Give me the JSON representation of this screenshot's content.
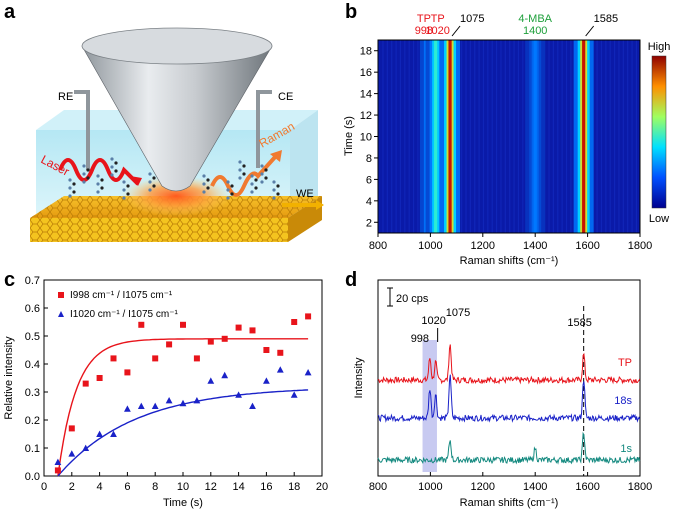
{
  "panels": {
    "a": {
      "letter": "a",
      "labels": {
        "re": "RE",
        "ce": "CE",
        "we": "WE",
        "laser": "Laser",
        "raman": "Raman"
      }
    },
    "b": {
      "letter": "b",
      "peak_labels": [
        {
          "text1": "TP",
          "text2": "998",
          "color": "#e8141b"
        },
        {
          "text1": "TP",
          "text2": "1020",
          "color": "#e8141b"
        },
        {
          "text1": "1075",
          "text2": "",
          "color": "#000000"
        },
        {
          "text1": "4-MBA",
          "text2": "1400",
          "color": "#1fa03c"
        },
        {
          "text1": "1585",
          "text2": "",
          "color": "#000000"
        }
      ],
      "colorbar": {
        "high": "High",
        "low": "Low"
      }
    },
    "c": {
      "letter": "c"
    },
    "d": {
      "letter": "d",
      "scale_bar": "20 cps",
      "peak_labels": [
        "998",
        "1020",
        "1075",
        "1585"
      ],
      "trace_labels": [
        {
          "text": "TP",
          "color": "#e8141b"
        },
        {
          "text": "18s",
          "color": "#1a22c8"
        },
        {
          "text": "1s",
          "color": "#158a80"
        }
      ]
    }
  },
  "chart_data": [
    {
      "type": "heatmap",
      "panel": "b",
      "xlabel": "Raman shifts (cm⁻¹)",
      "ylabel": "Time (s)",
      "xlim": [
        800,
        1800
      ],
      "ylim": [
        1,
        19
      ],
      "x_ticks": [
        800,
        1000,
        1200,
        1400,
        1600,
        1800
      ],
      "y_ticks": [
        2,
        4,
        6,
        8,
        10,
        12,
        14,
        16,
        18
      ],
      "bands": [
        {
          "center": 998,
          "intensity": 0.55
        },
        {
          "center": 1020,
          "intensity": 0.6
        },
        {
          "center": 1075,
          "intensity": 1.0
        },
        {
          "center": 1400,
          "intensity": 0.3
        },
        {
          "center": 1585,
          "intensity": 1.0
        }
      ]
    },
    {
      "type": "scatter",
      "panel": "c",
      "xlabel": "Time (s)",
      "ylabel": "Relative intensity",
      "xlim": [
        0,
        20
      ],
      "ylim": [
        0,
        0.7
      ],
      "x_ticks": [
        0,
        2,
        4,
        6,
        8,
        10,
        12,
        14,
        16,
        18,
        20
      ],
      "y_ticks": [
        0.0,
        0.1,
        0.2,
        0.3,
        0.4,
        0.5,
        0.6,
        0.7
      ],
      "series": [
        {
          "name": "I998 cm⁻¹ / I1075 cm⁻¹",
          "color": "#e8141b",
          "marker": "square",
          "x": [
            1,
            2,
            3,
            4,
            5,
            6,
            7,
            8,
            9,
            10,
            11,
            12,
            13,
            14,
            15,
            16,
            17,
            18,
            19
          ],
          "y": [
            0.02,
            0.17,
            0.33,
            0.35,
            0.42,
            0.37,
            0.54,
            0.42,
            0.47,
            0.54,
            0.42,
            0.48,
            0.49,
            0.53,
            0.52,
            0.45,
            0.44,
            0.55,
            0.57
          ],
          "fit": {
            "plateau": 0.49,
            "rate": 0.75,
            "x0": 1
          }
        },
        {
          "name": "I1020 cm⁻¹ / I1075 cm⁻¹",
          "color": "#1a22c8",
          "marker": "triangle",
          "x": [
            1,
            2,
            3,
            4,
            5,
            6,
            7,
            8,
            9,
            10,
            11,
            12,
            13,
            14,
            15,
            16,
            17,
            18,
            19
          ],
          "y": [
            0.05,
            0.08,
            0.1,
            0.15,
            0.15,
            0.24,
            0.25,
            0.25,
            0.27,
            0.26,
            0.27,
            0.34,
            0.36,
            0.29,
            0.25,
            0.34,
            0.38,
            0.29,
            0.37
          ],
          "fit": {
            "plateau": 0.32,
            "rate": 0.18,
            "x0": 1
          }
        }
      ]
    },
    {
      "type": "line",
      "panel": "d",
      "xlabel": "Raman shifts (cm⁻¹)",
      "ylabel": "Intensity",
      "xlim": [
        800,
        1800
      ],
      "x_ticks": [
        800,
        1000,
        1200,
        1400,
        1600,
        1800
      ],
      "marker_line": 1585,
      "highlight_range": [
        970,
        1025
      ],
      "series": [
        {
          "name": "TP",
          "color": "#e8141b",
          "peaks": [
            [
              998,
              22
            ],
            [
              1020,
              18
            ],
            [
              1075,
              36
            ],
            [
              1585,
              26
            ]
          ]
        },
        {
          "name": "18s",
          "color": "#1a22c8",
          "peaks": [
            [
              998,
              30
            ],
            [
              1020,
              24
            ],
            [
              1075,
              42
            ],
            [
              1585,
              40
            ]
          ]
        },
        {
          "name": "1s",
          "color": "#158a80",
          "peaks": [
            [
              1075,
              20
            ],
            [
              1400,
              12
            ],
            [
              1585,
              28
            ]
          ]
        }
      ]
    }
  ]
}
